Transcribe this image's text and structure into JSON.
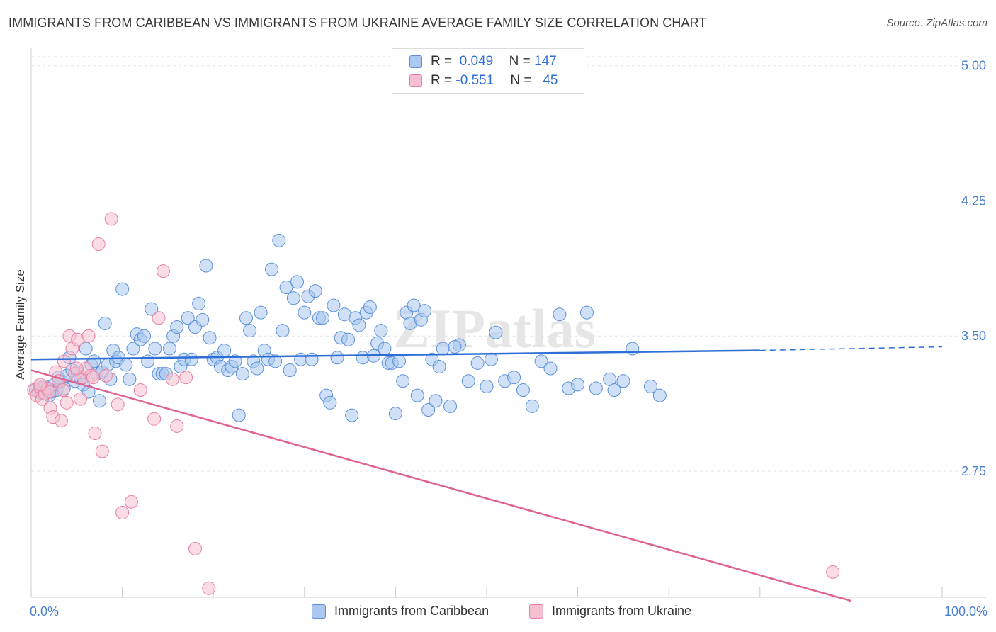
{
  "title": "IMMIGRANTS FROM CARIBBEAN VS IMMIGRANTS FROM UKRAINE AVERAGE FAMILY SIZE CORRELATION CHART",
  "source": "Source: ZipAtlas.com",
  "watermark": "ZIPatlas",
  "legend": {
    "rows": [
      {
        "r_label": "R =",
        "r_value": "0.049",
        "n_label": "N =",
        "n_value": "147"
      },
      {
        "r_label": "R =",
        "r_value": "-0.551",
        "n_label": "N =",
        "n_value": "45"
      }
    ]
  },
  "colors": {
    "caribbean_fill": "#aac8f0",
    "caribbean_stroke": "#5b8fd8",
    "caribbean_line": "#2e6fd6",
    "ukraine_fill": "#f6bfd0",
    "ukraine_stroke": "#e87fa0",
    "ukraine_line": "#e0628f",
    "tick_text": "#4a7fcf"
  },
  "chart_data": {
    "type": "scatter",
    "xlabel": "",
    "ylabel": "Average Family Size",
    "x_tick_labels": [
      "0.0%",
      "100.0%"
    ],
    "y_tick_labels": [
      "5.00",
      "4.25",
      "3.50",
      "2.75"
    ],
    "xlim": [
      0,
      100
    ],
    "ylim": [
      2.05,
      5.05
    ],
    "grid": true,
    "legend_position": "top-center",
    "series": [
      {
        "name": "Immigrants from Caribbean",
        "trend": {
          "x": [
            0,
            80
          ],
          "y": [
            3.37,
            3.42
          ],
          "dashed_to_x": 100,
          "dashed_to_y": 3.44
        },
        "points": [
          [
            0.5,
            3.2
          ],
          [
            0.8,
            3.19
          ],
          [
            1.0,
            3.21
          ],
          [
            1.2,
            3.18
          ],
          [
            1.5,
            3.22
          ],
          [
            1.8,
            3.2
          ],
          [
            2.0,
            3.17
          ],
          [
            2.2,
            3.19
          ],
          [
            2.5,
            3.23
          ],
          [
            2.8,
            3.2
          ],
          [
            3.0,
            3.27
          ],
          [
            3.3,
            3.25
          ],
          [
            3.6,
            3.21
          ],
          [
            3.9,
            3.28
          ],
          [
            4.2,
            3.38
          ],
          [
            4.5,
            3.31
          ],
          [
            4.8,
            3.25
          ],
          [
            5.1,
            3.3
          ],
          [
            5.4,
            3.27
          ],
          [
            5.7,
            3.23
          ],
          [
            6.0,
            3.43
          ],
          [
            6.3,
            3.19
          ],
          [
            6.6,
            3.34
          ],
          [
            6.9,
            3.36
          ],
          [
            7.2,
            3.29
          ],
          [
            7.5,
            3.14
          ],
          [
            7.8,
            3.3
          ],
          [
            8.1,
            3.57
          ],
          [
            8.4,
            3.34
          ],
          [
            8.7,
            3.26
          ],
          [
            9.0,
            3.42
          ],
          [
            9.3,
            3.36
          ],
          [
            9.6,
            3.38
          ],
          [
            10.0,
            3.76
          ],
          [
            10.4,
            3.34
          ],
          [
            10.8,
            3.26
          ],
          [
            11.2,
            3.43
          ],
          [
            11.6,
            3.51
          ],
          [
            12.0,
            3.48
          ],
          [
            12.4,
            3.5
          ],
          [
            12.8,
            3.36
          ],
          [
            13.2,
            3.65
          ],
          [
            13.6,
            3.43
          ],
          [
            14.0,
            3.29
          ],
          [
            14.4,
            3.29
          ],
          [
            14.8,
            3.29
          ],
          [
            15.2,
            3.43
          ],
          [
            15.6,
            3.5
          ],
          [
            16.0,
            3.55
          ],
          [
            16.4,
            3.33
          ],
          [
            16.8,
            3.37
          ],
          [
            17.2,
            3.6
          ],
          [
            17.6,
            3.37
          ],
          [
            18.0,
            3.55
          ],
          [
            18.4,
            3.68
          ],
          [
            18.8,
            3.59
          ],
          [
            19.2,
            3.89
          ],
          [
            19.6,
            3.49
          ],
          [
            20.0,
            3.37
          ],
          [
            20.4,
            3.38
          ],
          [
            20.8,
            3.33
          ],
          [
            21.2,
            3.42
          ],
          [
            21.6,
            3.31
          ],
          [
            22.0,
            3.33
          ],
          [
            22.4,
            3.36
          ],
          [
            22.8,
            3.06
          ],
          [
            23.2,
            3.29
          ],
          [
            23.6,
            3.6
          ],
          [
            24.0,
            3.53
          ],
          [
            24.4,
            3.36
          ],
          [
            24.8,
            3.32
          ],
          [
            25.2,
            3.63
          ],
          [
            25.6,
            3.42
          ],
          [
            26.0,
            3.37
          ],
          [
            26.4,
            3.87
          ],
          [
            26.8,
            3.36
          ],
          [
            27.2,
            4.03
          ],
          [
            27.6,
            3.53
          ],
          [
            28.0,
            3.77
          ],
          [
            28.4,
            3.31
          ],
          [
            28.8,
            3.71
          ],
          [
            29.2,
            3.8
          ],
          [
            29.6,
            3.37
          ],
          [
            30.0,
            3.63
          ],
          [
            30.4,
            3.72
          ],
          [
            30.8,
            3.37
          ],
          [
            31.2,
            3.75
          ],
          [
            31.6,
            3.6
          ],
          [
            32.0,
            3.6
          ],
          [
            32.4,
            3.17
          ],
          [
            32.8,
            3.13
          ],
          [
            33.2,
            3.67
          ],
          [
            33.6,
            3.38
          ],
          [
            34.0,
            3.49
          ],
          [
            34.4,
            3.62
          ],
          [
            34.8,
            3.48
          ],
          [
            35.2,
            3.06
          ],
          [
            35.6,
            3.6
          ],
          [
            36.0,
            3.56
          ],
          [
            36.4,
            3.38
          ],
          [
            36.8,
            3.63
          ],
          [
            37.2,
            3.66
          ],
          [
            37.6,
            3.39
          ],
          [
            38.0,
            3.46
          ],
          [
            38.4,
            3.53
          ],
          [
            38.8,
            3.43
          ],
          [
            39.2,
            3.35
          ],
          [
            39.6,
            3.35
          ],
          [
            40.0,
            3.07
          ],
          [
            40.4,
            3.36
          ],
          [
            40.8,
            3.25
          ],
          [
            41.2,
            3.63
          ],
          [
            41.6,
            3.57
          ],
          [
            42.0,
            3.67
          ],
          [
            42.4,
            3.17
          ],
          [
            42.8,
            3.59
          ],
          [
            43.2,
            3.64
          ],
          [
            43.6,
            3.09
          ],
          [
            44.0,
            3.37
          ],
          [
            44.4,
            3.14
          ],
          [
            44.8,
            3.33
          ],
          [
            45.2,
            3.43
          ],
          [
            46.0,
            3.11
          ],
          [
            47.0,
            3.45
          ],
          [
            48.0,
            3.25
          ],
          [
            49.0,
            3.35
          ],
          [
            50.0,
            3.22
          ],
          [
            51.0,
            3.52
          ],
          [
            52.0,
            3.25
          ],
          [
            53.0,
            3.27
          ],
          [
            54.0,
            3.2
          ],
          [
            55.0,
            3.11
          ],
          [
            56.0,
            3.36
          ],
          [
            57.0,
            3.32
          ],
          [
            58.0,
            3.62
          ],
          [
            59.0,
            3.21
          ],
          [
            60.0,
            3.23
          ],
          [
            61.0,
            3.63
          ],
          [
            62.0,
            3.21
          ],
          [
            65.0,
            3.25
          ],
          [
            66.0,
            3.43
          ],
          [
            68.0,
            3.22
          ],
          [
            69.0,
            3.17
          ],
          [
            63.5,
            3.26
          ],
          [
            64.0,
            3.2
          ],
          [
            46.5,
            3.44
          ],
          [
            50.5,
            3.37
          ]
        ]
      },
      {
        "name": "Immigrants from Ukraine",
        "trend": {
          "x": [
            0,
            90
          ],
          "y": [
            3.31,
            2.03
          ]
        },
        "points": [
          [
            0.3,
            3.2
          ],
          [
            0.6,
            3.17
          ],
          [
            0.9,
            3.22
          ],
          [
            1.2,
            3.15
          ],
          [
            1.5,
            3.18
          ],
          [
            1.8,
            3.21
          ],
          [
            2.1,
            3.1
          ],
          [
            2.4,
            3.05
          ],
          [
            2.7,
            3.3
          ],
          [
            3.0,
            3.25
          ],
          [
            3.3,
            3.03
          ],
          [
            3.6,
            3.36
          ],
          [
            3.9,
            3.13
          ],
          [
            4.2,
            3.5
          ],
          [
            4.5,
            3.43
          ],
          [
            4.8,
            3.29
          ],
          [
            5.1,
            3.48
          ],
          [
            5.4,
            3.15
          ],
          [
            5.7,
            3.27
          ],
          [
            6.0,
            3.32
          ],
          [
            6.3,
            3.5
          ],
          [
            6.6,
            3.28
          ],
          [
            7.0,
            2.96
          ],
          [
            7.4,
            4.01
          ],
          [
            7.8,
            2.86
          ],
          [
            8.2,
            3.28
          ],
          [
            8.8,
            4.15
          ],
          [
            9.5,
            3.12
          ],
          [
            10.0,
            2.52
          ],
          [
            11.0,
            2.58
          ],
          [
            12.0,
            3.2
          ],
          [
            13.5,
            3.04
          ],
          [
            14.0,
            3.6
          ],
          [
            14.5,
            3.86
          ],
          [
            15.5,
            3.26
          ],
          [
            16.0,
            3.0
          ],
          [
            17.0,
            3.27
          ],
          [
            18.0,
            2.32
          ],
          [
            19.5,
            2.1
          ],
          [
            88.0,
            2.19
          ],
          [
            2.0,
            3.19
          ],
          [
            1.0,
            3.23
          ],
          [
            3.5,
            3.2
          ],
          [
            5.0,
            3.32
          ],
          [
            6.8,
            3.27
          ]
        ]
      }
    ]
  },
  "bottom_legend": [
    "Immigrants from Caribbean",
    "Immigrants from Ukraine"
  ]
}
